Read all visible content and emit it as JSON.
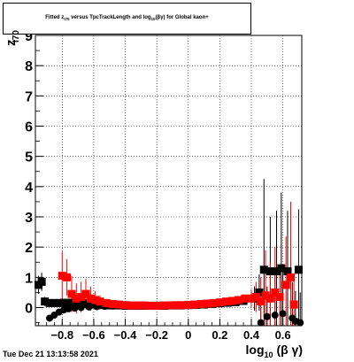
{
  "title": {
    "prefix": "Fitted  z",
    "sub1": "I70",
    "middle": "  versus TpcTrackLength and log",
    "sub2": "10",
    "suffix": "(βγ) for Global kaon+"
  },
  "footer": "Tue Dec 21 13:13:58 2021",
  "axes": {
    "ylabel": "z",
    "ylabel_sub": "I70",
    "xlabel_main": "log",
    "xlabel_sub": "10",
    "xlabel_tail": "(β γ)"
  },
  "chart_data": {
    "type": "scatter",
    "title": "Fitted z_I70 versus TpcTrackLength and log10(βγ) for Global kaon+",
    "xlabel": "log10(β γ)",
    "ylabel": "z_I70",
    "xlim": [
      -0.97,
      0.72
    ],
    "ylim": [
      -0.6,
      9.0
    ],
    "x_ticks": [
      -0.8,
      -0.6,
      -0.4,
      -0.2,
      0,
      0.2,
      0.4,
      0.6
    ],
    "x_tick_labels": [
      "−0.8",
      "−0.6",
      "−0.4",
      "−0.2",
      "0",
      "0.2",
      "0.4",
      "0.6"
    ],
    "y_ticks": [
      0,
      1,
      2,
      3,
      4,
      5,
      6,
      7,
      8,
      9
    ],
    "y_tick_labels": [
      "0",
      "1",
      "2",
      "3",
      "4",
      "5",
      "6",
      "7",
      "8",
      "9"
    ],
    "grid": true,
    "series": [
      {
        "color": "#000000",
        "marker": "square",
        "points": [
          {
            "x": -0.95,
            "y": 0.75,
            "err": 0.3
          },
          {
            "x": -0.93,
            "y": 0.85,
            "err": 0.3
          },
          {
            "x": -0.91,
            "y": 0.2,
            "err": 0.15
          },
          {
            "x": -0.88,
            "y": 0.15,
            "err": 0.1
          },
          {
            "x": -0.85,
            "y": 0.15,
            "err": 0.1
          },
          {
            "x": -0.82,
            "y": 0.15,
            "err": 0.1
          },
          {
            "x": -0.79,
            "y": 0.16,
            "err": 0.1
          },
          {
            "x": -0.76,
            "y": 0.16,
            "err": 0.1
          },
          {
            "x": -0.73,
            "y": 0.16,
            "err": 0.1
          },
          {
            "x": -0.7,
            "y": 0.15,
            "err": 0.1
          },
          {
            "x": -0.67,
            "y": 0.14,
            "err": 0.08
          },
          {
            "x": -0.64,
            "y": 0.12,
            "err": 0.05
          },
          {
            "x": -0.6,
            "y": 0.1,
            "err": 0.05
          },
          {
            "x": -0.55,
            "y": 0.08,
            "err": 0.03
          },
          {
            "x": -0.5,
            "y": 0.07,
            "err": 0.02
          },
          {
            "x": -0.45,
            "y": 0.07,
            "err": 0.02
          },
          {
            "x": -0.4,
            "y": 0.06,
            "err": 0.02
          },
          {
            "x": -0.35,
            "y": 0.06,
            "err": 0.02
          },
          {
            "x": -0.3,
            "y": 0.06,
            "err": 0.02
          },
          {
            "x": -0.25,
            "y": 0.06,
            "err": 0.02
          },
          {
            "x": -0.2,
            "y": 0.06,
            "err": 0.02
          },
          {
            "x": -0.15,
            "y": 0.06,
            "err": 0.02
          },
          {
            "x": -0.1,
            "y": 0.07,
            "err": 0.02
          },
          {
            "x": -0.05,
            "y": 0.07,
            "err": 0.02
          },
          {
            "x": 0.0,
            "y": 0.08,
            "err": 0.02
          },
          {
            "x": 0.05,
            "y": 0.09,
            "err": 0.02
          },
          {
            "x": 0.1,
            "y": 0.1,
            "err": 0.02
          },
          {
            "x": 0.15,
            "y": 0.12,
            "err": 0.02
          },
          {
            "x": 0.2,
            "y": 0.14,
            "err": 0.03
          },
          {
            "x": 0.25,
            "y": 0.16,
            "err": 0.03
          },
          {
            "x": 0.3,
            "y": 0.18,
            "err": 0.04
          },
          {
            "x": 0.35,
            "y": 0.22,
            "err": 0.06
          },
          {
            "x": 0.42,
            "y": 0.3,
            "err": 0.4
          },
          {
            "x": 0.45,
            "y": 0.5,
            "err": 0.6
          },
          {
            "x": 0.48,
            "y": 1.25,
            "err": 3.0
          },
          {
            "x": 0.52,
            "y": 1.2,
            "err": 1.8
          },
          {
            "x": 0.56,
            "y": 1.2,
            "err": 2.0
          },
          {
            "x": 0.59,
            "y": 1.3,
            "err": 2.5
          },
          {
            "x": 0.63,
            "y": 1.2,
            "err": 2.0
          },
          {
            "x": 0.7,
            "y": 1.25,
            "err": 2.0
          }
        ]
      },
      {
        "color": "#000000",
        "marker": "circle",
        "points": [
          {
            "x": -0.88,
            "y": -0.35,
            "err": 0.05
          },
          {
            "x": -0.85,
            "y": -0.25,
            "err": 0.05
          },
          {
            "x": -0.82,
            "y": -0.15,
            "err": 0.05
          },
          {
            "x": -0.79,
            "y": -0.08,
            "err": 0.04
          },
          {
            "x": -0.76,
            "y": -0.04,
            "err": 0.03
          },
          {
            "x": -0.72,
            "y": -0.02,
            "err": 0.03
          },
          {
            "x": -0.68,
            "y": 0.0,
            "err": 0.03
          },
          {
            "x": -0.63,
            "y": 0.02,
            "err": 0.03
          },
          {
            "x": -0.58,
            "y": 0.03,
            "err": 0.02
          },
          {
            "x": -0.53,
            "y": 0.04,
            "err": 0.02
          },
          {
            "x": -0.48,
            "y": 0.05,
            "err": 0.02
          },
          {
            "x": 0.46,
            "y": -0.5,
            "err": 0.8
          },
          {
            "x": 0.5,
            "y": -0.3,
            "err": 1.0
          },
          {
            "x": 0.55,
            "y": -0.25,
            "err": 1.5
          },
          {
            "x": 0.6,
            "y": -0.2,
            "err": 1.5
          },
          {
            "x": 0.66,
            "y": -0.35,
            "err": 1.2
          },
          {
            "x": 0.68,
            "y": -0.45,
            "err": 1.0
          },
          {
            "x": 0.71,
            "y": -0.5,
            "err": 1.0
          }
        ]
      },
      {
        "color": "#ff0000",
        "marker": "square",
        "points": [
          {
            "x": -0.8,
            "y": 1.05,
            "err": 0.8
          },
          {
            "x": -0.77,
            "y": 1.0,
            "err": 0.6
          },
          {
            "x": -0.74,
            "y": 0.45,
            "err": 0.6
          },
          {
            "x": -0.71,
            "y": 0.3,
            "err": 0.5
          },
          {
            "x": -0.68,
            "y": 0.35,
            "err": 0.5
          },
          {
            "x": -0.65,
            "y": 0.45,
            "err": 0.5
          },
          {
            "x": -0.62,
            "y": 0.3,
            "err": 0.4
          },
          {
            "x": -0.59,
            "y": 0.25,
            "err": 0.3
          },
          {
            "x": -0.56,
            "y": 0.2,
            "err": 0.2
          },
          {
            "x": -0.52,
            "y": 0.15,
            "err": 0.1
          },
          {
            "x": -0.48,
            "y": 0.12,
            "err": 0.08
          },
          {
            "x": -0.44,
            "y": 0.1,
            "err": 0.05
          },
          {
            "x": -0.4,
            "y": 0.08,
            "err": 0.04
          },
          {
            "x": -0.36,
            "y": 0.07,
            "err": 0.03
          },
          {
            "x": -0.32,
            "y": 0.07,
            "err": 0.03
          },
          {
            "x": -0.28,
            "y": 0.07,
            "err": 0.03
          },
          {
            "x": -0.24,
            "y": 0.06,
            "err": 0.02
          },
          {
            "x": -0.2,
            "y": 0.06,
            "err": 0.02
          },
          {
            "x": -0.16,
            "y": 0.07,
            "err": 0.02
          },
          {
            "x": -0.12,
            "y": 0.07,
            "err": 0.02
          },
          {
            "x": -0.08,
            "y": 0.08,
            "err": 0.02
          },
          {
            "x": -0.04,
            "y": 0.08,
            "err": 0.02
          },
          {
            "x": 0.0,
            "y": 0.09,
            "err": 0.02
          },
          {
            "x": 0.04,
            "y": 0.1,
            "err": 0.02
          },
          {
            "x": 0.08,
            "y": 0.12,
            "err": 0.02
          },
          {
            "x": 0.12,
            "y": 0.13,
            "err": 0.02
          },
          {
            "x": 0.16,
            "y": 0.15,
            "err": 0.03
          },
          {
            "x": 0.2,
            "y": 0.17,
            "err": 0.03
          },
          {
            "x": 0.24,
            "y": 0.2,
            "err": 0.04
          },
          {
            "x": 0.28,
            "y": 0.22,
            "err": 0.05
          },
          {
            "x": 0.32,
            "y": 0.25,
            "err": 0.06
          },
          {
            "x": 0.36,
            "y": 0.3,
            "err": 0.1
          },
          {
            "x": 0.4,
            "y": 0.3,
            "err": 0.3
          },
          {
            "x": 0.43,
            "y": 0.35,
            "err": 0.5
          },
          {
            "x": 0.46,
            "y": 0.2,
            "err": 0.8
          },
          {
            "x": 0.49,
            "y": 0.4,
            "err": 1.5
          },
          {
            "x": 0.52,
            "y": 0.3,
            "err": 1.2
          },
          {
            "x": 0.55,
            "y": 0.5,
            "err": 1.5
          },
          {
            "x": 0.58,
            "y": 0.35,
            "err": 1.0
          },
          {
            "x": 0.62,
            "y": 0.75,
            "err": 1.6
          },
          {
            "x": 0.65,
            "y": 1.0,
            "err": 2.5
          },
          {
            "x": 0.67,
            "y": 0.1,
            "err": 0.8
          }
        ]
      }
    ]
  }
}
